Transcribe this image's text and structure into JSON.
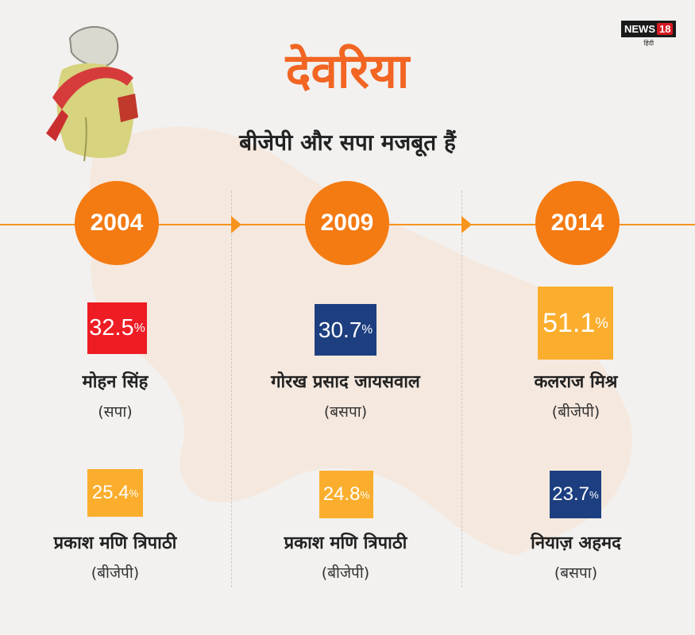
{
  "header": {
    "title": "देवरिया",
    "subtitle": "बीजेपी और सपा मजबूत हैं"
  },
  "logo": {
    "brand": "NEWS",
    "number": "18",
    "sub": "हिंदी"
  },
  "colors": {
    "accent": "#f47a12",
    "sp_red": "#ee1c24",
    "bsp_blue": "#1d3f80",
    "bjp_saffron": "#fbae2d"
  },
  "years": [
    {
      "year": "2004",
      "first": {
        "value": "32.5",
        "unit": "%",
        "name": "मोहन सिंह",
        "party": "(सपा)"
      },
      "second": {
        "value": "25.4",
        "unit": "%",
        "name": "प्रकाश मणि त्रिपाठी",
        "party": "(बीजेपी)"
      }
    },
    {
      "year": "2009",
      "first": {
        "value": "30.7",
        "unit": "%",
        "name": "गोरख प्रसाद जायसवाल",
        "party": "(बसपा)"
      },
      "second": {
        "value": "24.8",
        "unit": "%",
        "name": "प्रकाश मणि त्रिपाठी",
        "party": "(बीजेपी)"
      }
    },
    {
      "year": "2014",
      "first": {
        "value": "51.1",
        "unit": "%",
        "name": "कलराज मिश्र",
        "party": "(बीजेपी)"
      },
      "second": {
        "value": "23.7",
        "unit": "%",
        "name": "नियाज़ अहमद",
        "party": "(बसपा)"
      }
    }
  ]
}
